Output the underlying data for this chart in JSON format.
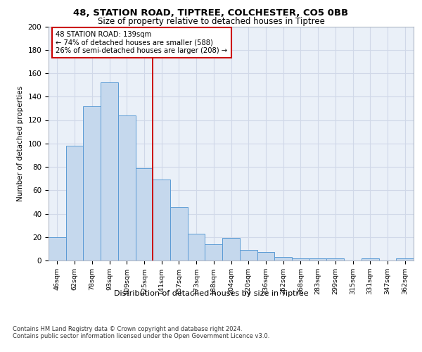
{
  "title1": "48, STATION ROAD, TIPTREE, COLCHESTER, CO5 0BB",
  "title2": "Size of property relative to detached houses in Tiptree",
  "xlabel": "Distribution of detached houses by size in Tiptree",
  "ylabel": "Number of detached properties",
  "categories": [
    "46sqm",
    "62sqm",
    "78sqm",
    "93sqm",
    "109sqm",
    "125sqm",
    "141sqm",
    "157sqm",
    "173sqm",
    "188sqm",
    "204sqm",
    "220sqm",
    "236sqm",
    "252sqm",
    "268sqm",
    "283sqm",
    "299sqm",
    "315sqm",
    "331sqm",
    "347sqm",
    "362sqm"
  ],
  "values": [
    20,
    98,
    132,
    152,
    124,
    79,
    69,
    46,
    23,
    14,
    19,
    9,
    7,
    3,
    2,
    2,
    2,
    0,
    2,
    0,
    2
  ],
  "bar_color": "#c5d8ed",
  "bar_edge_color": "#5b9bd5",
  "vline_x": 5.5,
  "annotation_text": "48 STATION ROAD: 139sqm\n← 74% of detached houses are smaller (588)\n26% of semi-detached houses are larger (208) →",
  "annotation_box_color": "#ffffff",
  "annotation_box_edge_color": "#cc0000",
  "ylim": [
    0,
    200
  ],
  "yticks": [
    0,
    20,
    40,
    60,
    80,
    100,
    120,
    140,
    160,
    180,
    200
  ],
  "grid_color": "#d0d8e8",
  "background_color": "#eaf0f8",
  "footer1": "Contains HM Land Registry data © Crown copyright and database right 2024.",
  "footer2": "Contains public sector information licensed under the Open Government Licence v3.0."
}
